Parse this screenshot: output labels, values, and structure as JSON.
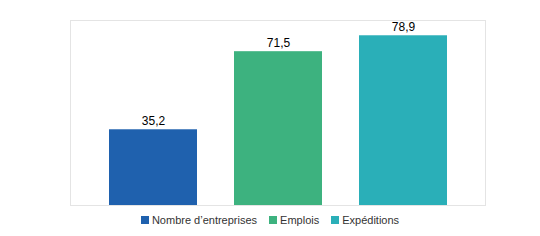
{
  "chart_data": {
    "type": "bar",
    "categories": [
      "Nombre d’entreprises",
      "Emplois",
      "Expéditions"
    ],
    "values": [
      35.2,
      71.5,
      78.9
    ],
    "value_labels": [
      "35,2",
      "71,5",
      "78,9"
    ],
    "colors": [
      "#1f61ae",
      "#3db27f",
      "#2aafb8"
    ],
    "ylim": [
      0,
      86
    ],
    "data_labels": true,
    "tick_labels": false,
    "legend": "bottom"
  }
}
